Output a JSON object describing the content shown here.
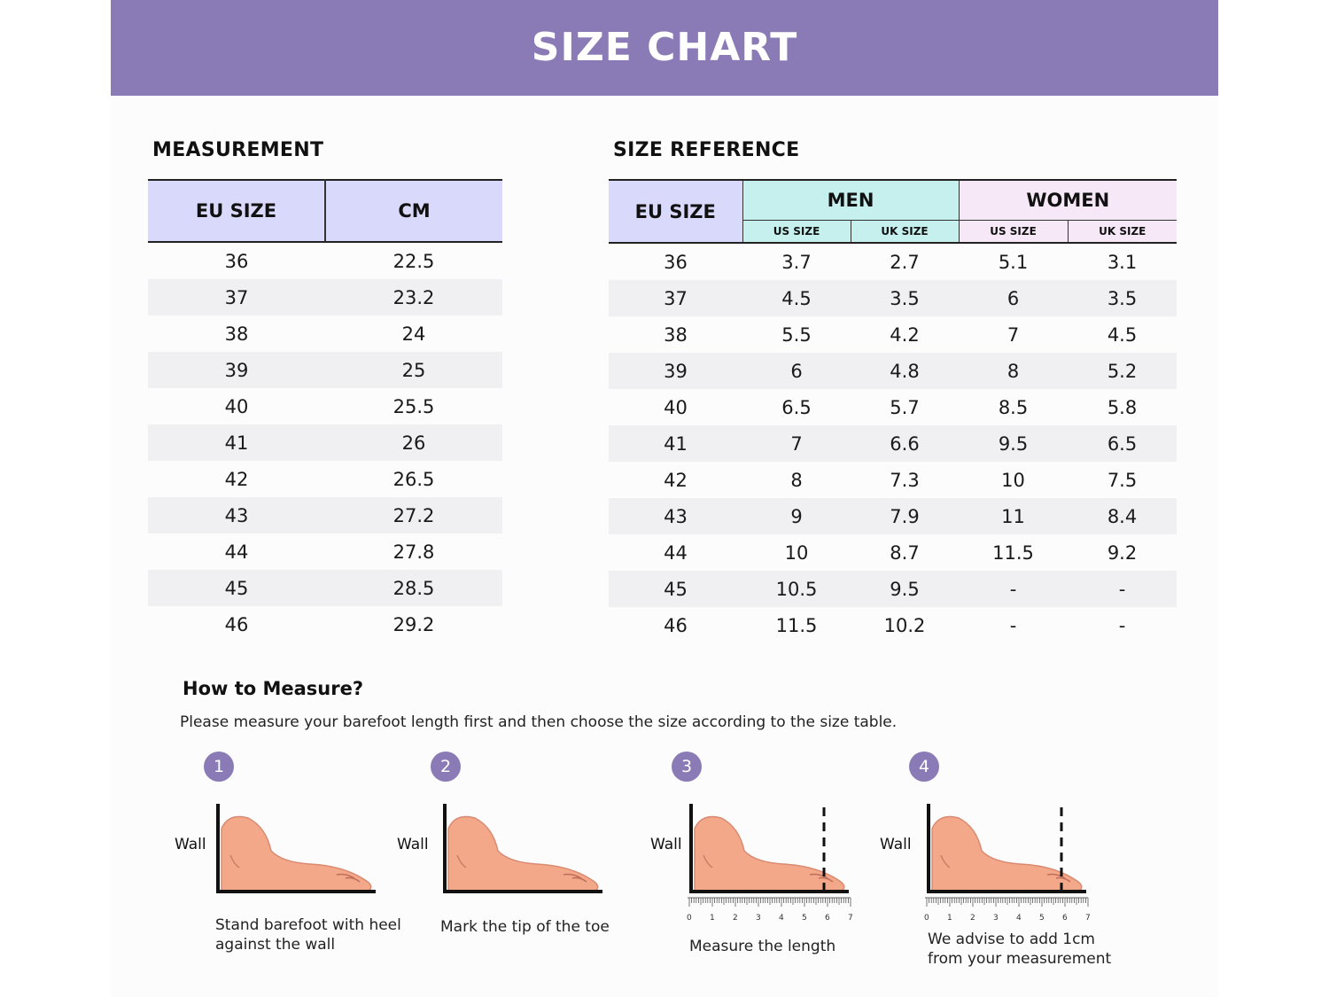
{
  "header": {
    "title": "SIZE CHART"
  },
  "measurement": {
    "title": "MEASUREMENT",
    "columns": [
      "EU SIZE",
      "CM"
    ],
    "rows": [
      [
        "36",
        "22.5"
      ],
      [
        "37",
        "23.2"
      ],
      [
        "38",
        "24"
      ],
      [
        "39",
        "25"
      ],
      [
        "40",
        "25.5"
      ],
      [
        "41",
        "26"
      ],
      [
        "42",
        "26.5"
      ],
      [
        "43",
        "27.2"
      ],
      [
        "44",
        "27.8"
      ],
      [
        "45",
        "28.5"
      ],
      [
        "46",
        "29.2"
      ]
    ]
  },
  "reference": {
    "title": "SIZE REFERENCE",
    "eu_header": "EU SIZE",
    "men_header": "MEN",
    "women_header": "WOMEN",
    "sub_headers": [
      "US SIZE",
      "UK SIZE",
      "US SIZE",
      "UK SIZE"
    ],
    "rows": [
      [
        "36",
        "3.7",
        "2.7",
        "5.1",
        "3.1"
      ],
      [
        "37",
        "4.5",
        "3.5",
        "6",
        "3.5"
      ],
      [
        "38",
        "5.5",
        "4.2",
        "7",
        "4.5"
      ],
      [
        "39",
        "6",
        "4.8",
        "8",
        "5.2"
      ],
      [
        "40",
        "6.5",
        "5.7",
        "8.5",
        "5.8"
      ],
      [
        "41",
        "7",
        "6.6",
        "9.5",
        "6.5"
      ],
      [
        "42",
        "8",
        "7.3",
        "10",
        "7.5"
      ],
      [
        "43",
        "9",
        "7.9",
        "11",
        "8.4"
      ],
      [
        "44",
        "10",
        "8.7",
        "11.5",
        "9.2"
      ],
      [
        "45",
        "10.5",
        "9.5",
        "-",
        "-"
      ],
      [
        "46",
        "11.5",
        "10.2",
        "-",
        "-"
      ]
    ]
  },
  "how_to": {
    "title": "How to Measure?",
    "description": "Please measure your barefoot length first and then choose the size according to the size table.",
    "wall_label": "Wall",
    "ruler_ticks": [
      "0",
      "1",
      "2",
      "3",
      "4",
      "5",
      "6",
      "7"
    ],
    "steps": [
      {
        "number": "1",
        "caption_line1": "Stand barefoot with heel",
        "caption_line2": "against the wall"
      },
      {
        "number": "2",
        "caption_line1": "Mark the tip of the toe",
        "caption_line2": ""
      },
      {
        "number": "3",
        "caption_line1": "Measure the length",
        "caption_line2": ""
      },
      {
        "number": "4",
        "caption_line1": "We advise to add 1cm",
        "caption_line2": "from your measurement"
      }
    ]
  },
  "colors": {
    "banner": "#8a7ab5",
    "eu_header_bg": "#d9d9fb",
    "men_header_bg": "#c6f0ee",
    "women_header_bg": "#f7e8f7",
    "foot_skin": "#f4a88a"
  }
}
